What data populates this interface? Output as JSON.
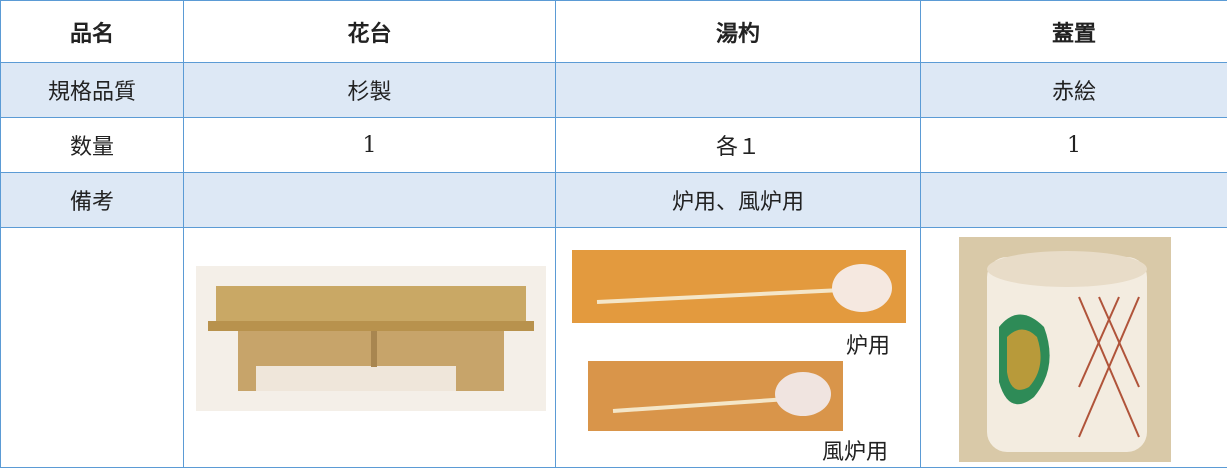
{
  "table": {
    "header": [
      "品名",
      "花台",
      "湯杓",
      "蓋置"
    ],
    "rows": [
      [
        "規格品質",
        "杉製",
        null,
        "赤絵"
      ],
      [
        "数量",
        "1",
        "各１",
        "1"
      ],
      [
        "備考",
        null,
        "炉用、風炉用",
        null
      ]
    ],
    "captions": [
      "炉用",
      "風炉用"
    ]
  }
}
